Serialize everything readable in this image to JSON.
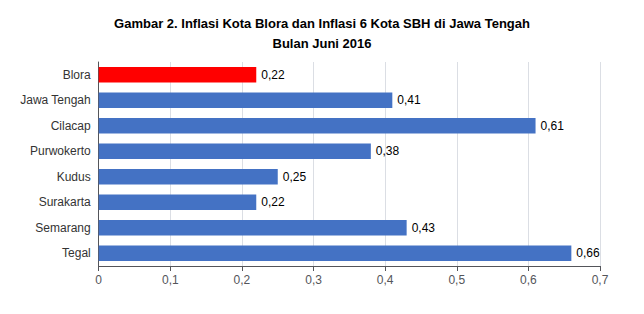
{
  "chart_data": {
    "type": "bar",
    "orientation": "horizontal",
    "title": "Gambar 2. Inflasi Kota Blora dan Inflasi 6 Kota SBH di Jawa Tengah\nBulan Juni 2016",
    "categories": [
      "Blora",
      "Jawa Tengah",
      "Cilacap",
      "Purwokerto",
      "Kudus",
      "Surakarta",
      "Semarang",
      "Tegal"
    ],
    "values": [
      0.22,
      0.41,
      0.61,
      0.38,
      0.25,
      0.22,
      0.43,
      0.66
    ],
    "value_labels": [
      "0,22",
      "0,41",
      "0,61",
      "0,38",
      "0,25",
      "0,22",
      "0,43",
      "0,66"
    ],
    "colors": [
      "#FF0000",
      "#4472C4",
      "#4472C4",
      "#4472C4",
      "#4472C4",
      "#4472C4",
      "#4472C4",
      "#4472C4"
    ],
    "xlim": [
      0,
      0.7
    ],
    "xticks": [
      0,
      {
        "value": 0.1,
        "label": "0,1"
      },
      {
        "value": 0.2,
        "label": "0,2"
      },
      {
        "value": 0.3,
        "label": "0,3"
      },
      {
        "value": 0.4,
        "label": "0,4"
      },
      {
        "value": 0.5,
        "label": "0,5"
      },
      {
        "value": 0.6,
        "label": "0,6"
      },
      {
        "value": 0.7,
        "label": "0,7"
      }
    ],
    "grid": true,
    "data_labels": true
  }
}
